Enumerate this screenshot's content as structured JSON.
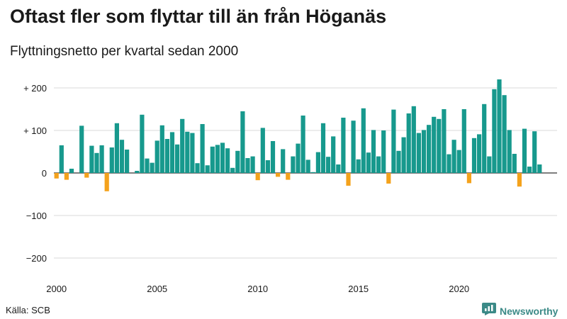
{
  "title": "Oftast fler som flyttar till än från Höganäs",
  "subtitle": "Flyttningsnetto per kvartal sedan 2000",
  "source": "Källa: SCB",
  "brand": "Newsworthy",
  "colors": {
    "positive": "#17998d",
    "negative": "#f4a21c",
    "grid": "#d9d9d9",
    "brand": "#3b8a87"
  },
  "chart_data": {
    "type": "bar",
    "title": "Oftast fler som flyttar till än från Höganäs",
    "subtitle": "Flyttningsnetto per kvartal sedan 2000",
    "ylim": [
      -240,
      230
    ],
    "y_ticks": [
      {
        "value": 200,
        "label": "+ 200"
      },
      {
        "value": 100,
        "label": "+ 100"
      },
      {
        "value": 0,
        "label": "0"
      },
      {
        "value": -100,
        "label": "−100"
      },
      {
        "value": -200,
        "label": "−200"
      }
    ],
    "x_ticks": [
      "2000",
      "2005",
      "2010",
      "2015",
      "2020"
    ],
    "grid": true,
    "start": "2000 Q1",
    "values": [
      -13,
      65,
      -16,
      10,
      0,
      111,
      -11,
      64,
      47,
      65,
      -43,
      60,
      117,
      78,
      55,
      0,
      5,
      137,
      34,
      24,
      76,
      112,
      80,
      96,
      67,
      127,
      97,
      94,
      23,
      115,
      18,
      62,
      66,
      71,
      58,
      12,
      52,
      145,
      35,
      39,
      -17,
      106,
      30,
      75,
      -9,
      56,
      -16,
      39,
      69,
      135,
      31,
      2,
      49,
      117,
      38,
      86,
      20,
      130,
      -30,
      123,
      32,
      152,
      48,
      101,
      39,
      100,
      -25,
      149,
      52,
      84,
      140,
      157,
      94,
      101,
      113,
      132,
      127,
      150,
      44,
      78,
      54,
      150,
      -24,
      82,
      91,
      162,
      39,
      197,
      220,
      183,
      101,
      45,
      -32,
      104,
      15,
      98,
      20
    ]
  }
}
